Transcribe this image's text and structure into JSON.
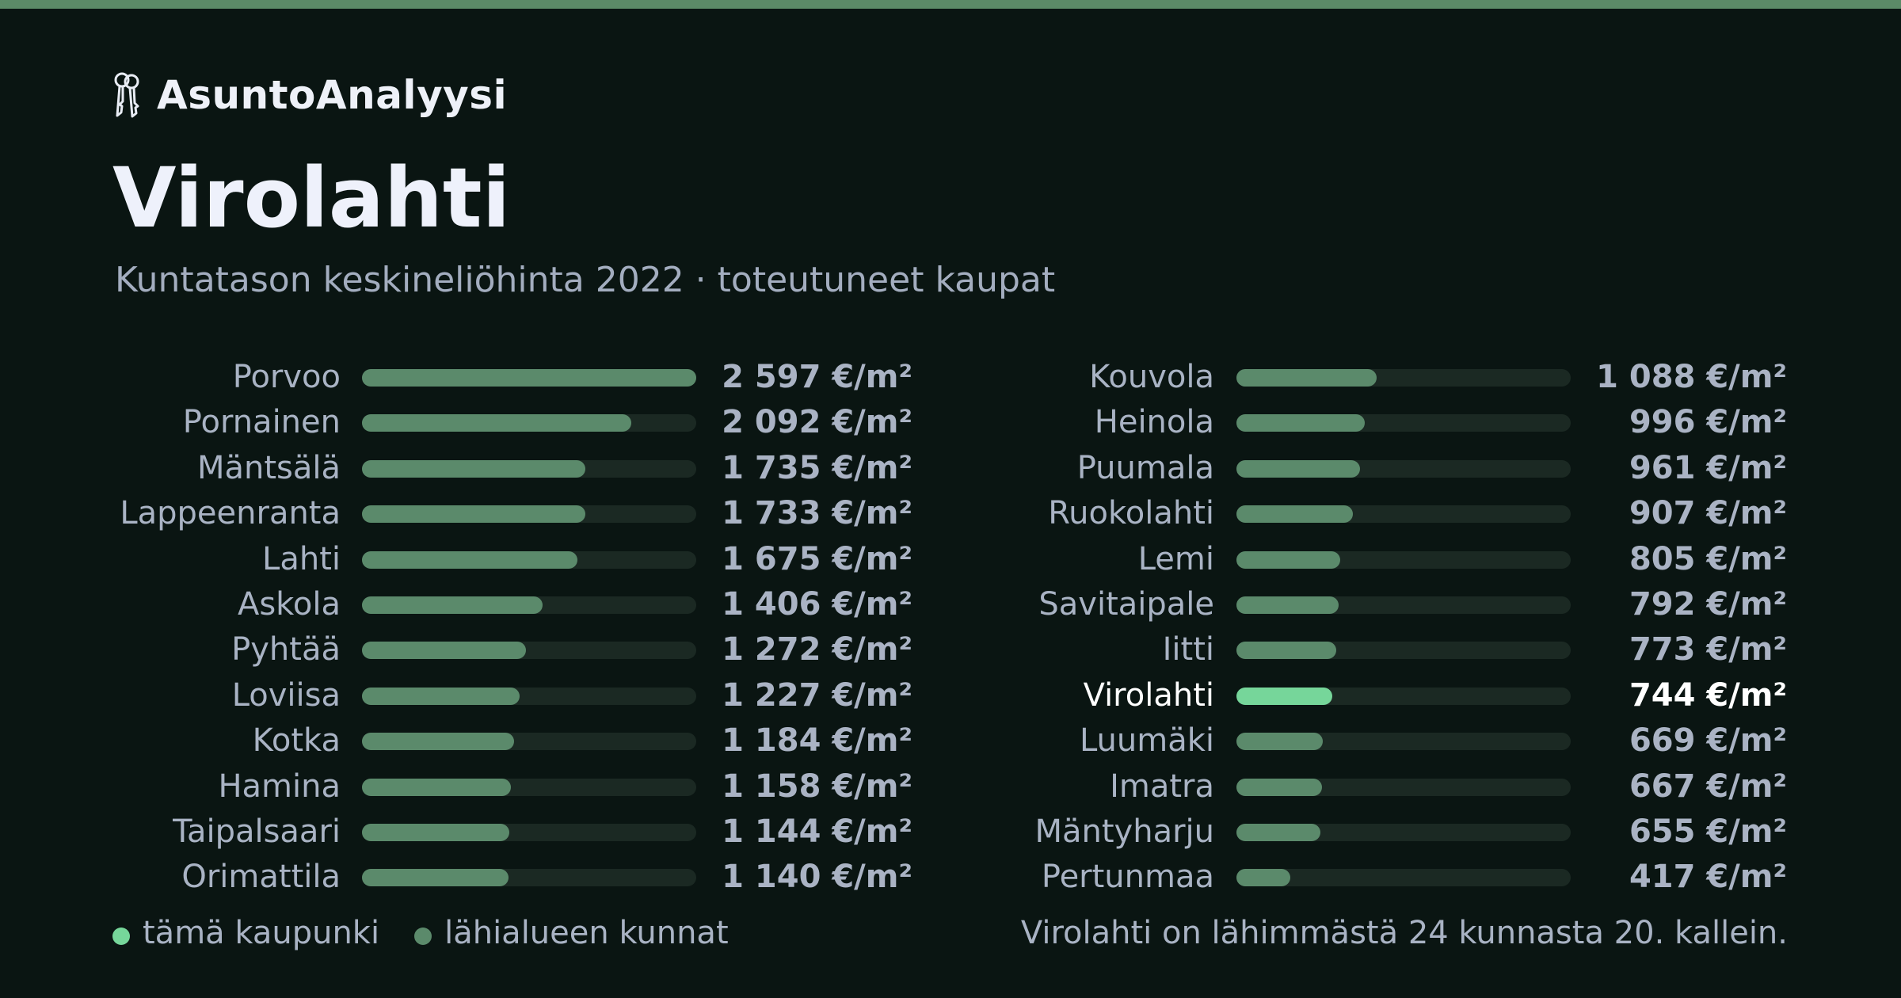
{
  "brand": {
    "name": "AsuntoAnalyysi",
    "icon": "keys-icon"
  },
  "title": "Virolahti",
  "subtitle": "Kuntatason keskineliöhinta 2022 · toteutuneet kaupat",
  "legend": {
    "this_city": "tämä kaupunki",
    "nearby": "lähialueen kunnat"
  },
  "rank_note": "Virolahti on lähimmästä 24 kunnasta 20. kallein.",
  "colors": {
    "background": "#0a1512",
    "accent_bar": "#5b8a67",
    "bar": "#5b8a6b",
    "highlight": "#76d69a",
    "track": "#1b2923"
  },
  "chart_data": {
    "type": "bar",
    "orientation": "horizontal",
    "unit": "€/m²",
    "xlim": [
      0,
      2597
    ],
    "highlight": "Virolahti",
    "categories": [
      "Porvoo",
      "Pornainen",
      "Mäntsälä",
      "Lappeenranta",
      "Lahti",
      "Askola",
      "Pyhtää",
      "Loviisa",
      "Kotka",
      "Hamina",
      "Taipalsaari",
      "Orimattila",
      "Kouvola",
      "Heinola",
      "Puumala",
      "Ruokolahti",
      "Lemi",
      "Savitaipale",
      "Iitti",
      "Virolahti",
      "Luumäki",
      "Imatra",
      "Mäntyharju",
      "Pertunmaa"
    ],
    "values": [
      2597,
      2092,
      1735,
      1733,
      1675,
      1406,
      1272,
      1227,
      1184,
      1158,
      1144,
      1140,
      1088,
      996,
      961,
      907,
      805,
      792,
      773,
      744,
      669,
      667,
      655,
      417
    ],
    "labels": [
      "2 597 €/m²",
      "2 092 €/m²",
      "1 735 €/m²",
      "1 733 €/m²",
      "1 675 €/m²",
      "1 406 €/m²",
      "1 272 €/m²",
      "1 227 €/m²",
      "1 184 €/m²",
      "1 158 €/m²",
      "1 144 €/m²",
      "1 140 €/m²",
      "1 088 €/m²",
      "996 €/m²",
      "961 €/m²",
      "907 €/m²",
      "805 €/m²",
      "792 €/m²",
      "773 €/m²",
      "744 €/m²",
      "669 €/m²",
      "667 €/m²",
      "655 €/m²",
      "417 €/m²"
    ]
  }
}
